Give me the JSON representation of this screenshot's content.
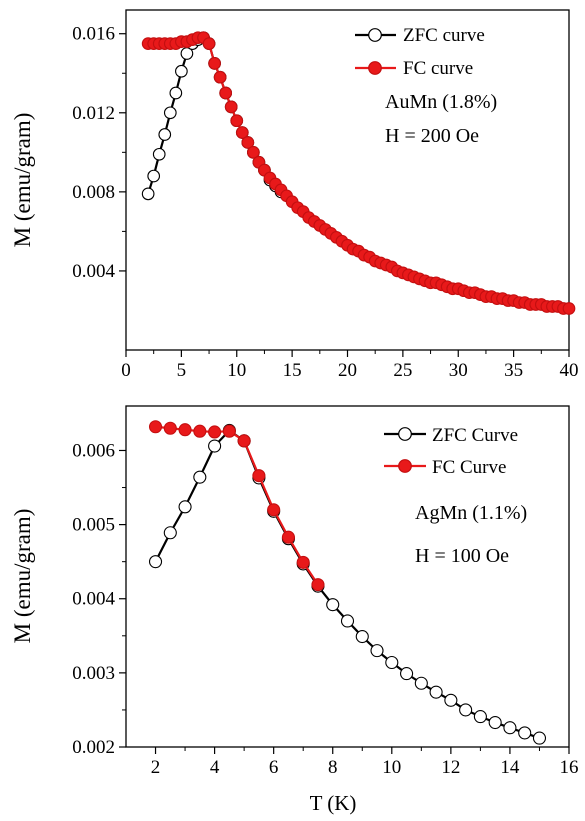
{
  "chart_data": [
    {
      "type": "line",
      "panel": "top",
      "xlim": [
        0,
        40
      ],
      "ylim": [
        0.0,
        0.0172
      ],
      "x_ticks": [
        "0",
        "5",
        "10",
        "15",
        "20",
        "25",
        "30",
        "35",
        "40"
      ],
      "y_ticks": [
        "0.004",
        "0.008",
        "0.012",
        "0.016"
      ],
      "xlabel": "",
      "ylabel": "M (emu/gram)",
      "legend_position": "top-right",
      "annotations": [
        "AuMn (1.8%)",
        "H = 200 Oe"
      ],
      "series": [
        {
          "name": "ZFC curve",
          "marker": "open-circle",
          "color": "#000000",
          "x": [
            2.0,
            2.5,
            3.0,
            3.5,
            4.0,
            4.5,
            5.0,
            5.5,
            6.0,
            6.5,
            7.0,
            7.5,
            8.0,
            8.5,
            9.0,
            9.5,
            10.0,
            10.5,
            11.0,
            11.5,
            12.0,
            12.5,
            13.0,
            13.5,
            14.0
          ],
          "y": [
            0.0079,
            0.0088,
            0.0099,
            0.0109,
            0.012,
            0.013,
            0.0141,
            0.015,
            0.0155,
            0.0157,
            0.0158,
            0.0155,
            0.0145,
            0.0138,
            0.013,
            0.0123,
            0.0116,
            0.011,
            0.0105,
            0.01,
            0.0095,
            0.0091,
            0.0086,
            0.0083,
            0.008
          ]
        },
        {
          "name": "FC curve",
          "marker": "filled-circle",
          "color": "#e8191a",
          "x": [
            2.0,
            2.5,
            3.0,
            3.5,
            4.0,
            4.5,
            5.0,
            5.5,
            6.0,
            6.5,
            7.0,
            7.5,
            8.0,
            8.5,
            9.0,
            9.5,
            10.0,
            10.5,
            11.0,
            11.5,
            12.0,
            12.5,
            13.0,
            13.5,
            14.0,
            14.5,
            15.0,
            15.5,
            16.0,
            16.5,
            17.0,
            17.5,
            18.0,
            18.5,
            19.0,
            19.5,
            20.0,
            20.5,
            21.0,
            21.5,
            22.0,
            22.5,
            23.0,
            23.5,
            24.0,
            24.5,
            25.0,
            25.5,
            26.0,
            26.5,
            27.0,
            27.5,
            28.0,
            28.5,
            29.0,
            29.5,
            30.0,
            30.5,
            31.0,
            31.5,
            32.0,
            32.5,
            33.0,
            33.5,
            34.0,
            34.5,
            35.0,
            35.5,
            36.0,
            36.5,
            37.0,
            37.5,
            38.0,
            38.5,
            39.0,
            39.5,
            40.0
          ],
          "y": [
            0.0155,
            0.0155,
            0.0155,
            0.0155,
            0.0155,
            0.0155,
            0.0156,
            0.0156,
            0.0157,
            0.0158,
            0.0158,
            0.0155,
            0.0145,
            0.0138,
            0.013,
            0.0123,
            0.0116,
            0.011,
            0.0105,
            0.01,
            0.0095,
            0.0091,
            0.0087,
            0.0084,
            0.0081,
            0.0078,
            0.0075,
            0.0072,
            0.007,
            0.0067,
            0.0065,
            0.0063,
            0.0061,
            0.0059,
            0.0057,
            0.0055,
            0.0053,
            0.0051,
            0.005,
            0.0048,
            0.0047,
            0.0045,
            0.0044,
            0.0043,
            0.0042,
            0.004,
            0.0039,
            0.0038,
            0.0037,
            0.0036,
            0.0035,
            0.0034,
            0.0034,
            0.0033,
            0.0032,
            0.0031,
            0.0031,
            0.003,
            0.0029,
            0.0029,
            0.0028,
            0.0027,
            0.0027,
            0.0026,
            0.0026,
            0.0025,
            0.0025,
            0.0024,
            0.0024,
            0.0023,
            0.0023,
            0.0023,
            0.0022,
            0.0022,
            0.0022,
            0.0021,
            0.0021
          ]
        }
      ]
    },
    {
      "type": "line",
      "panel": "bottom",
      "xlim": [
        1,
        16
      ],
      "ylim": [
        0.002,
        0.0066
      ],
      "x_ticks": [
        "2",
        "4",
        "6",
        "8",
        "10",
        "12",
        "14",
        "16"
      ],
      "y_ticks": [
        "0.002",
        "0.003",
        "0.004",
        "0.005",
        "0.006"
      ],
      "xlabel": "T (K)",
      "ylabel": "M (emu/gram)",
      "legend_position": "top-right",
      "annotations": [
        "AgMn (1.1%)",
        "H = 100 Oe"
      ],
      "series": [
        {
          "name": "ZFC Curve",
          "marker": "open-circle",
          "color": "#000000",
          "x": [
            2.0,
            2.5,
            3.0,
            3.5,
            4.0,
            4.5,
            5.0,
            5.5,
            6.0,
            6.5,
            7.0,
            7.5,
            8.0,
            8.5,
            9.0,
            9.5,
            10.0,
            10.5,
            11.0,
            11.5,
            12.0,
            12.5,
            13.0,
            13.5,
            14.0,
            14.5,
            15.0
          ],
          "y": [
            0.0045,
            0.00489,
            0.00524,
            0.00564,
            0.00606,
            0.00627,
            0.00613,
            0.00563,
            0.00518,
            0.00481,
            0.00447,
            0.00417,
            0.00392,
            0.0037,
            0.00349,
            0.0033,
            0.00314,
            0.00299,
            0.00286,
            0.00274,
            0.00263,
            0.0025,
            0.00241,
            0.00233,
            0.00226,
            0.00219,
            0.00212
          ]
        },
        {
          "name": "FC Curve",
          "marker": "filled-circle",
          "color": "#e8191a",
          "x": [
            2.0,
            2.5,
            3.0,
            3.5,
            4.0,
            4.5,
            5.0,
            5.5,
            6.0,
            6.5,
            7.0,
            7.5
          ],
          "y": [
            0.00632,
            0.0063,
            0.00628,
            0.00626,
            0.00625,
            0.00626,
            0.00613,
            0.00566,
            0.0052,
            0.00483,
            0.00449,
            0.00419
          ]
        }
      ]
    }
  ]
}
